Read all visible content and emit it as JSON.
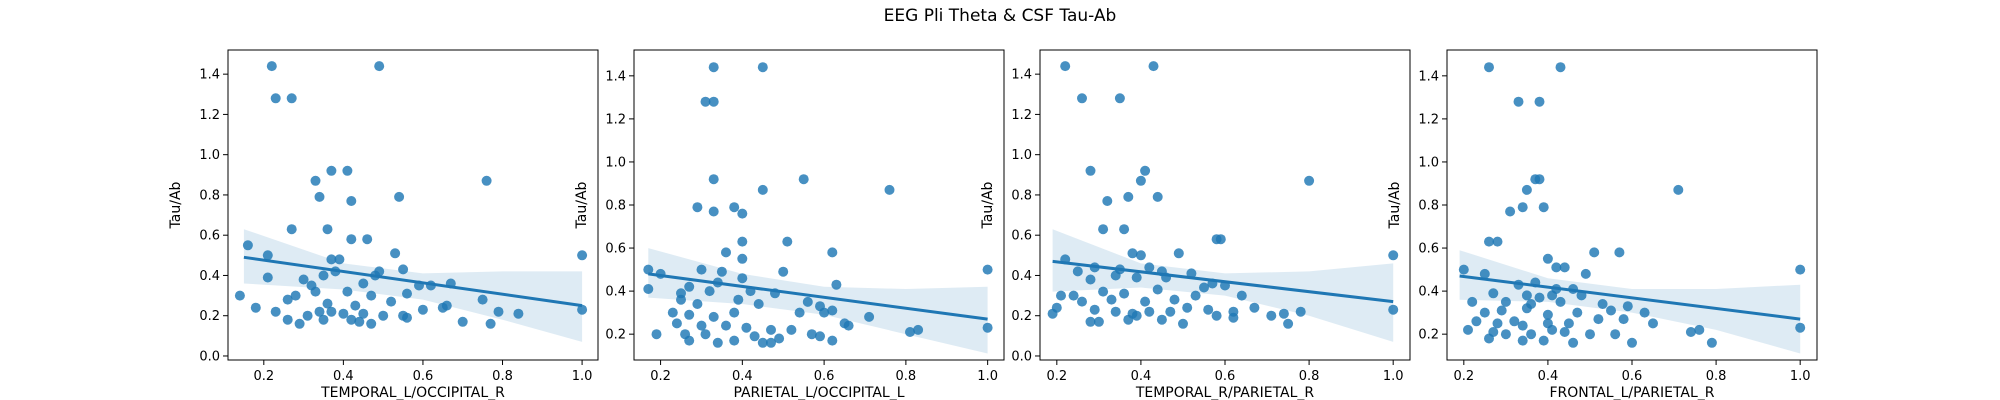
{
  "figure": {
    "suptitle": "EEG Pli Theta & CSF Tau-Ab"
  },
  "colors": {
    "points": "#1f77b4",
    "line": "#1f77b4",
    "band": "#1f77b4"
  },
  "chart_data": [
    {
      "type": "scatter",
      "title": "",
      "xlabel": "TEMPORAL_L/OCCIPITAL_R",
      "ylabel": "Tau/Ab",
      "xlim": [
        0.11,
        1.04
      ],
      "ylim": [
        -0.02,
        1.52
      ],
      "xticks": [
        0.2,
        0.4,
        0.6,
        0.8,
        1.0
      ],
      "yticks": [
        0.0,
        0.2,
        0.4,
        0.6,
        0.8,
        1.0,
        1.2,
        1.4
      ],
      "grid": false,
      "legend": "none",
      "regression": {
        "x": [
          0.15,
          1.0
        ],
        "y": [
          0.49,
          0.25
        ]
      },
      "ci_band": {
        "x": [
          0.15,
          0.4,
          0.6,
          0.8,
          1.0
        ],
        "lower": [
          0.36,
          0.33,
          0.28,
          0.18,
          0.07
        ],
        "upper": [
          0.63,
          0.46,
          0.41,
          0.42,
          0.42
        ]
      },
      "points": [
        [
          0.22,
          1.44
        ],
        [
          0.49,
          1.44
        ],
        [
          0.23,
          1.28
        ],
        [
          0.27,
          1.28
        ],
        [
          0.37,
          0.92
        ],
        [
          0.41,
          0.92
        ],
        [
          0.33,
          0.87
        ],
        [
          0.76,
          0.87
        ],
        [
          0.34,
          0.79
        ],
        [
          0.54,
          0.79
        ],
        [
          0.42,
          0.77
        ],
        [
          0.27,
          0.63
        ],
        [
          0.36,
          0.63
        ],
        [
          0.16,
          0.55
        ],
        [
          0.42,
          0.58
        ],
        [
          0.46,
          0.58
        ],
        [
          0.21,
          0.5
        ],
        [
          0.37,
          0.48
        ],
        [
          0.39,
          0.48
        ],
        [
          0.53,
          0.51
        ],
        [
          0.49,
          0.42
        ],
        [
          0.55,
          0.43
        ],
        [
          0.35,
          0.4
        ],
        [
          0.38,
          0.42
        ],
        [
          0.48,
          0.4
        ],
        [
          0.21,
          0.39
        ],
        [
          0.3,
          0.38
        ],
        [
          0.32,
          0.35
        ],
        [
          0.45,
          0.36
        ],
        [
          0.59,
          0.35
        ],
        [
          0.62,
          0.35
        ],
        [
          0.67,
          0.36
        ],
        [
          0.28,
          0.3
        ],
        [
          0.33,
          0.32
        ],
        [
          0.41,
          0.32
        ],
        [
          0.47,
          0.3
        ],
        [
          0.56,
          0.31
        ],
        [
          0.14,
          0.3
        ],
        [
          0.26,
          0.28
        ],
        [
          0.36,
          0.26
        ],
        [
          0.43,
          0.25
        ],
        [
          0.52,
          0.27
        ],
        [
          0.66,
          0.25
        ],
        [
          0.75,
          0.28
        ],
        [
          0.18,
          0.24
        ],
        [
          0.23,
          0.22
        ],
        [
          0.31,
          0.2
        ],
        [
          0.34,
          0.22
        ],
        [
          0.37,
          0.22
        ],
        [
          0.4,
          0.21
        ],
        [
          0.45,
          0.21
        ],
        [
          0.5,
          0.2
        ],
        [
          0.55,
          0.2
        ],
        [
          0.6,
          0.23
        ],
        [
          0.65,
          0.24
        ],
        [
          0.79,
          0.22
        ],
        [
          0.84,
          0.21
        ],
        [
          0.26,
          0.18
        ],
        [
          0.29,
          0.16
        ],
        [
          0.35,
          0.18
        ],
        [
          0.42,
          0.18
        ],
        [
          0.44,
          0.17
        ],
        [
          0.47,
          0.16
        ],
        [
          0.56,
          0.19
        ],
        [
          0.7,
          0.17
        ],
        [
          0.77,
          0.16
        ],
        [
          1.0,
          0.5
        ],
        [
          1.0,
          0.23
        ]
      ]
    },
    {
      "type": "scatter",
      "title": "",
      "xlabel": "PARIETAL_L/OCCIPITAL_L",
      "ylabel": "Tau/Ab",
      "xlim": [
        0.135,
        1.04
      ],
      "ylim": [
        0.08,
        1.52
      ],
      "xticks": [
        0.2,
        0.4,
        0.6,
        0.8,
        1.0
      ],
      "yticks": [
        0.2,
        0.4,
        0.6,
        0.8,
        1.0,
        1.2,
        1.4
      ],
      "grid": false,
      "legend": "none",
      "regression": {
        "x": [
          0.17,
          1.0
        ],
        "y": [
          0.48,
          0.27
        ]
      },
      "ci_band": {
        "x": [
          0.17,
          0.4,
          0.6,
          0.8,
          1.0
        ],
        "lower": [
          0.37,
          0.34,
          0.29,
          0.2,
          0.11
        ],
        "upper": [
          0.6,
          0.48,
          0.42,
          0.41,
          0.42
        ]
      },
      "points": [
        [
          0.33,
          1.44
        ],
        [
          0.45,
          1.44
        ],
        [
          0.31,
          1.28
        ],
        [
          0.33,
          1.28
        ],
        [
          0.33,
          0.92
        ],
        [
          0.55,
          0.92
        ],
        [
          0.45,
          0.87
        ],
        [
          0.76,
          0.87
        ],
        [
          0.29,
          0.79
        ],
        [
          0.38,
          0.79
        ],
        [
          0.33,
          0.77
        ],
        [
          0.4,
          0.76
        ],
        [
          0.4,
          0.63
        ],
        [
          0.51,
          0.63
        ],
        [
          0.36,
          0.58
        ],
        [
          0.62,
          0.58
        ],
        [
          0.4,
          0.55
        ],
        [
          0.17,
          0.5
        ],
        [
          0.2,
          0.48
        ],
        [
          0.3,
          0.5
        ],
        [
          0.35,
          0.49
        ],
        [
          0.5,
          0.49
        ],
        [
          0.27,
          0.42
        ],
        [
          0.34,
          0.44
        ],
        [
          0.4,
          0.46
        ],
        [
          0.63,
          0.43
        ],
        [
          0.25,
          0.39
        ],
        [
          0.32,
          0.4
        ],
        [
          0.42,
          0.4
        ],
        [
          0.48,
          0.39
        ],
        [
          0.17,
          0.41
        ],
        [
          0.25,
          0.36
        ],
        [
          0.29,
          0.34
        ],
        [
          0.39,
          0.36
        ],
        [
          0.44,
          0.34
        ],
        [
          0.56,
          0.35
        ],
        [
          0.59,
          0.33
        ],
        [
          0.62,
          0.31
        ],
        [
          0.23,
          0.3
        ],
        [
          0.27,
          0.29
        ],
        [
          0.33,
          0.28
        ],
        [
          0.38,
          0.3
        ],
        [
          0.54,
          0.3
        ],
        [
          0.6,
          0.3
        ],
        [
          0.71,
          0.28
        ],
        [
          0.24,
          0.25
        ],
        [
          0.3,
          0.24
        ],
        [
          0.36,
          0.24
        ],
        [
          0.41,
          0.23
        ],
        [
          0.47,
          0.22
        ],
        [
          0.52,
          0.22
        ],
        [
          0.57,
          0.2
        ],
        [
          0.65,
          0.25
        ],
        [
          0.66,
          0.24
        ],
        [
          0.19,
          0.2
        ],
        [
          0.26,
          0.2
        ],
        [
          0.31,
          0.2
        ],
        [
          0.43,
          0.19
        ],
        [
          0.49,
          0.18
        ],
        [
          0.59,
          0.19
        ],
        [
          0.62,
          0.17
        ],
        [
          0.27,
          0.17
        ],
        [
          0.34,
          0.16
        ],
        [
          0.38,
          0.17
        ],
        [
          0.45,
          0.16
        ],
        [
          0.47,
          0.16
        ],
        [
          0.81,
          0.21
        ],
        [
          0.83,
          0.22
        ],
        [
          1.0,
          0.5
        ],
        [
          1.0,
          0.23
        ]
      ]
    },
    {
      "type": "scatter",
      "title": "",
      "xlabel": "TEMPORAL_R/PARIETAL_R",
      "ylabel": "Tau/Ab",
      "xlim": [
        0.16,
        1.04
      ],
      "ylim": [
        -0.02,
        1.52
      ],
      "xticks": [
        0.2,
        0.4,
        0.6,
        0.8,
        1.0
      ],
      "yticks": [
        0.0,
        0.2,
        0.4,
        0.6,
        0.8,
        1.0,
        1.2,
        1.4
      ],
      "grid": false,
      "legend": "none",
      "regression": {
        "x": [
          0.19,
          1.0
        ],
        "y": [
          0.47,
          0.27
        ]
      },
      "ci_band": {
        "x": [
          0.19,
          0.4,
          0.6,
          0.8,
          1.0
        ],
        "lower": [
          0.32,
          0.34,
          0.3,
          0.2,
          0.07
        ],
        "upper": [
          0.63,
          0.46,
          0.41,
          0.42,
          0.46
        ]
      },
      "points": [
        [
          0.22,
          1.44
        ],
        [
          0.43,
          1.44
        ],
        [
          0.26,
          1.28
        ],
        [
          0.35,
          1.28
        ],
        [
          0.28,
          0.92
        ],
        [
          0.41,
          0.92
        ],
        [
          0.32,
          0.77
        ],
        [
          0.4,
          0.87
        ],
        [
          0.37,
          0.79
        ],
        [
          0.44,
          0.79
        ],
        [
          0.31,
          0.63
        ],
        [
          0.36,
          0.63
        ],
        [
          0.58,
          0.58
        ],
        [
          0.59,
          0.58
        ],
        [
          0.8,
          0.87
        ],
        [
          0.22,
          0.48
        ],
        [
          0.38,
          0.51
        ],
        [
          0.4,
          0.5
        ],
        [
          0.49,
          0.51
        ],
        [
          0.25,
          0.42
        ],
        [
          0.29,
          0.44
        ],
        [
          0.35,
          0.43
        ],
        [
          0.42,
          0.44
        ],
        [
          0.45,
          0.42
        ],
        [
          0.52,
          0.41
        ],
        [
          0.28,
          0.38
        ],
        [
          0.34,
          0.4
        ],
        [
          0.39,
          0.39
        ],
        [
          0.46,
          0.39
        ],
        [
          0.57,
          0.36
        ],
        [
          0.21,
          0.3
        ],
        [
          0.24,
          0.3
        ],
        [
          0.31,
          0.32
        ],
        [
          0.36,
          0.31
        ],
        [
          0.44,
          0.33
        ],
        [
          0.55,
          0.34
        ],
        [
          0.6,
          0.35
        ],
        [
          0.26,
          0.27
        ],
        [
          0.33,
          0.28
        ],
        [
          0.41,
          0.27
        ],
        [
          0.48,
          0.28
        ],
        [
          0.53,
          0.3
        ],
        [
          0.64,
          0.3
        ],
        [
          0.2,
          0.24
        ],
        [
          0.29,
          0.23
        ],
        [
          0.34,
          0.22
        ],
        [
          0.38,
          0.21
        ],
        [
          0.42,
          0.22
        ],
        [
          0.47,
          0.22
        ],
        [
          0.51,
          0.24
        ],
        [
          0.56,
          0.23
        ],
        [
          0.62,
          0.22
        ],
        [
          0.67,
          0.24
        ],
        [
          0.19,
          0.21
        ],
        [
          0.3,
          0.17
        ],
        [
          0.37,
          0.18
        ],
        [
          0.39,
          0.2
        ],
        [
          0.45,
          0.18
        ],
        [
          0.5,
          0.16
        ],
        [
          0.58,
          0.2
        ],
        [
          0.62,
          0.19
        ],
        [
          0.74,
          0.21
        ],
        [
          0.78,
          0.22
        ],
        [
          0.28,
          0.17
        ],
        [
          0.71,
          0.2
        ],
        [
          0.75,
          0.16
        ],
        [
          1.0,
          0.5
        ],
        [
          1.0,
          0.23
        ]
      ]
    },
    {
      "type": "scatter",
      "title": "",
      "xlabel": "FRONTAL_L/PARIETAL_R",
      "ylabel": "Tau/Ab",
      "xlim": [
        0.16,
        1.04
      ],
      "ylim": [
        0.08,
        1.52
      ],
      "xticks": [
        0.2,
        0.4,
        0.6,
        0.8,
        1.0
      ],
      "yticks": [
        0.2,
        0.4,
        0.6,
        0.8,
        1.0,
        1.2,
        1.4
      ],
      "grid": false,
      "legend": "none",
      "regression": {
        "x": [
          0.19,
          1.0
        ],
        "y": [
          0.47,
          0.27
        ]
      },
      "ci_band": {
        "x": [
          0.19,
          0.4,
          0.6,
          0.8,
          1.0
        ],
        "lower": [
          0.36,
          0.35,
          0.3,
          0.22,
          0.11
        ],
        "upper": [
          0.59,
          0.46,
          0.41,
          0.41,
          0.43
        ]
      },
      "points": [
        [
          0.26,
          1.44
        ],
        [
          0.43,
          1.44
        ],
        [
          0.33,
          1.28
        ],
        [
          0.38,
          1.28
        ],
        [
          0.37,
          0.92
        ],
        [
          0.38,
          0.92
        ],
        [
          0.35,
          0.87
        ],
        [
          0.71,
          0.87
        ],
        [
          0.31,
          0.77
        ],
        [
          0.34,
          0.79
        ],
        [
          0.39,
          0.79
        ],
        [
          0.26,
          0.63
        ],
        [
          0.28,
          0.63
        ],
        [
          0.51,
          0.58
        ],
        [
          0.57,
          0.58
        ],
        [
          0.4,
          0.55
        ],
        [
          0.42,
          0.51
        ],
        [
          0.44,
          0.51
        ],
        [
          0.2,
          0.5
        ],
        [
          0.25,
          0.48
        ],
        [
          0.49,
          0.48
        ],
        [
          0.33,
          0.43
        ],
        [
          0.37,
          0.44
        ],
        [
          0.42,
          0.41
        ],
        [
          0.46,
          0.41
        ],
        [
          0.27,
          0.39
        ],
        [
          0.35,
          0.38
        ],
        [
          0.38,
          0.37
        ],
        [
          0.41,
          0.38
        ],
        [
          0.48,
          0.38
        ],
        [
          0.22,
          0.35
        ],
        [
          0.3,
          0.35
        ],
        [
          0.36,
          0.34
        ],
        [
          0.43,
          0.35
        ],
        [
          0.53,
          0.34
        ],
        [
          0.59,
          0.33
        ],
        [
          0.25,
          0.3
        ],
        [
          0.29,
          0.31
        ],
        [
          0.35,
          0.32
        ],
        [
          0.4,
          0.29
        ],
        [
          0.47,
          0.3
        ],
        [
          0.55,
          0.31
        ],
        [
          0.63,
          0.3
        ],
        [
          0.23,
          0.26
        ],
        [
          0.28,
          0.25
        ],
        [
          0.32,
          0.26
        ],
        [
          0.34,
          0.24
        ],
        [
          0.4,
          0.25
        ],
        [
          0.45,
          0.25
        ],
        [
          0.52,
          0.27
        ],
        [
          0.58,
          0.27
        ],
        [
          0.65,
          0.25
        ],
        [
          0.21,
          0.22
        ],
        [
          0.27,
          0.21
        ],
        [
          0.3,
          0.2
        ],
        [
          0.36,
          0.2
        ],
        [
          0.41,
          0.22
        ],
        [
          0.44,
          0.21
        ],
        [
          0.5,
          0.2
        ],
        [
          0.56,
          0.2
        ],
        [
          0.74,
          0.21
        ],
        [
          0.76,
          0.22
        ],
        [
          0.26,
          0.18
        ],
        [
          0.34,
          0.17
        ],
        [
          0.39,
          0.17
        ],
        [
          0.46,
          0.16
        ],
        [
          0.6,
          0.16
        ],
        [
          0.79,
          0.16
        ],
        [
          1.0,
          0.5
        ],
        [
          1.0,
          0.23
        ]
      ]
    }
  ]
}
